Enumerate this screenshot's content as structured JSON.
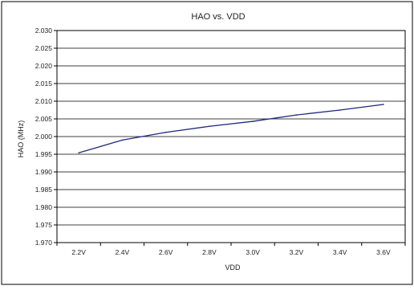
{
  "chart_data": {
    "type": "line",
    "title": "HAO vs. VDD",
    "xlabel": "VDD",
    "ylabel": "HAO (MHz)",
    "categories": [
      "2.2V",
      "2.4V",
      "2.6V",
      "2.8V",
      "3.0V",
      "3.2V",
      "3.4V",
      "3.6V"
    ],
    "series": [
      {
        "values": [
          1.9954,
          1.999,
          2.0012,
          2.0029,
          2.0043,
          2.0061,
          2.0075,
          2.0091
        ]
      }
    ],
    "ylim": [
      1.97,
      2.03
    ],
    "yticks": [
      "1.970",
      "1.975",
      "1.980",
      "1.985",
      "1.990",
      "1.995",
      "2.000",
      "2.005",
      "2.010",
      "2.015",
      "2.020",
      "2.025",
      "2.030"
    ],
    "grid": true,
    "line_color": "#1f2a7a"
  }
}
